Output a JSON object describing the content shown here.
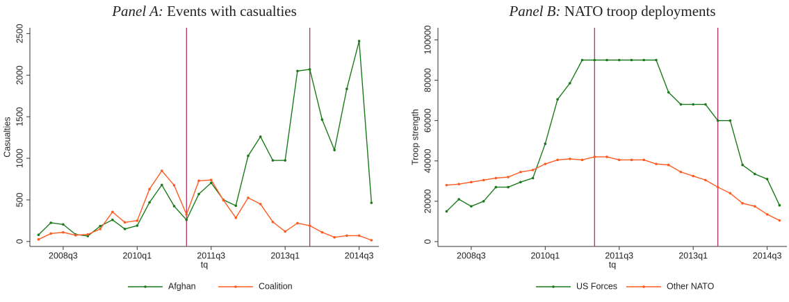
{
  "chart_data": [
    {
      "type": "line",
      "panel": "Panel A:",
      "title": "Events with casualties",
      "xlabel": "tq",
      "ylabel": "Casualties",
      "x": [
        192,
        193,
        194,
        195,
        196,
        197,
        198,
        199,
        200,
        201,
        202,
        203,
        204,
        205,
        206,
        207,
        208,
        209,
        210,
        211,
        212,
        213,
        214,
        215,
        216,
        217,
        218,
        219
      ],
      "series": [
        {
          "name": "Afghan",
          "color": "#1a7a1a",
          "values": [
            80,
            225,
            205,
            85,
            65,
            185,
            260,
            150,
            190,
            470,
            680,
            425,
            260,
            570,
            705,
            500,
            430,
            1030,
            1260,
            975,
            975,
            2050,
            2070,
            1465,
            1100,
            1835,
            2410,
            465
          ]
        },
        {
          "name": "Coalition",
          "color": "#ff5a1f",
          "values": [
            25,
            95,
            110,
            75,
            85,
            150,
            355,
            230,
            250,
            630,
            850,
            675,
            325,
            730,
            740,
            495,
            285,
            525,
            450,
            235,
            120,
            220,
            190,
            110,
            50,
            70,
            70,
            15
          ]
        }
      ],
      "xlim": [
        191.3,
        219.6
      ],
      "ylim": [
        -60,
        2570
      ],
      "xticks": [
        {
          "value": 194,
          "label": "2008q3"
        },
        {
          "value": 200,
          "label": "2010q1"
        },
        {
          "value": 206,
          "label": "2011q3"
        },
        {
          "value": 212,
          "label": "2013q1"
        },
        {
          "value": 218,
          "label": "2014q3"
        }
      ],
      "yticks": [
        0,
        500,
        1000,
        1500,
        2000,
        2500
      ],
      "reference_lines": [
        204,
        214
      ],
      "reference_color": "#b0205a",
      "grid": false,
      "legend": "bottom"
    },
    {
      "type": "line",
      "panel": "Panel B:",
      "title": "NATO troop deployments",
      "xlabel": "tq",
      "ylabel": "Troop strength",
      "x": [
        192,
        193,
        194,
        195,
        196,
        197,
        198,
        199,
        200,
        201,
        202,
        203,
        204,
        205,
        206,
        207,
        208,
        209,
        210,
        211,
        212,
        213,
        214,
        215,
        216,
        217,
        218,
        219
      ],
      "series": [
        {
          "name": "US Forces",
          "color": "#1a7a1a",
          "values": [
            15000,
            21000,
            17500,
            20000,
            27000,
            27000,
            29500,
            31500,
            48500,
            70500,
            78500,
            90000,
            90000,
            90000,
            90000,
            90000,
            90000,
            90000,
            74000,
            68000,
            68000,
            68000,
            60000,
            60000,
            38000,
            33500,
            31000,
            18000
          ]
        },
        {
          "name": "Other NATO",
          "color": "#ff5a1f",
          "values": [
            28000,
            28500,
            29500,
            30500,
            31500,
            32000,
            34500,
            35500,
            38500,
            40500,
            41000,
            40500,
            42000,
            42000,
            40500,
            40500,
            40500,
            38500,
            38000,
            34500,
            32500,
            30500,
            27000,
            24000,
            19000,
            17500,
            13500,
            10500
          ]
        }
      ],
      "xlim": [
        191.3,
        219.6
      ],
      "ylim": [
        -2400,
        106000
      ],
      "xticks": [
        {
          "value": 194,
          "label": "2008q3"
        },
        {
          "value": 200,
          "label": "2010q1"
        },
        {
          "value": 206,
          "label": "2011q3"
        },
        {
          "value": 212,
          "label": "2013q1"
        },
        {
          "value": 218,
          "label": "2014q3"
        }
      ],
      "yticks": [
        0,
        20000,
        40000,
        60000,
        80000,
        100000
      ],
      "reference_lines": [
        204,
        214
      ],
      "reference_color": "#b0205a",
      "grid": false,
      "legend": "bottom"
    }
  ]
}
